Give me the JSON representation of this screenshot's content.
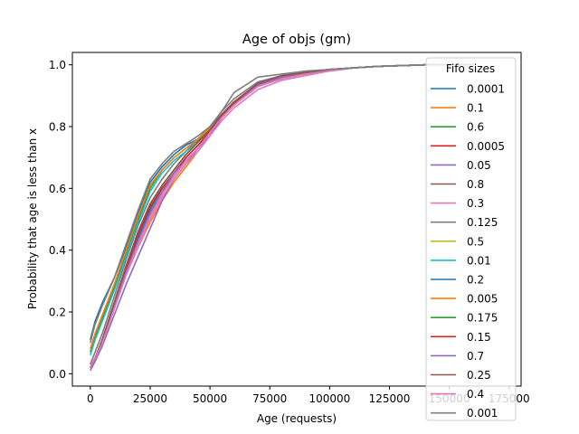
{
  "chart_data": {
    "type": "line",
    "title": "Age of objs (gm)",
    "xlabel": "Age (requests)",
    "ylabel": "Probability that age is less than x",
    "xlim": [
      -7500,
      180000
    ],
    "ylim": [
      -0.04,
      1.04
    ],
    "x_ticks": [
      0,
      25000,
      50000,
      75000,
      100000,
      125000,
      150000,
      175000
    ],
    "x_tick_labels": [
      "0",
      "25000",
      "50000",
      "75000",
      "100000",
      "125000",
      "150000",
      "175000"
    ],
    "y_ticks": [
      0.0,
      0.2,
      0.4,
      0.6,
      0.8,
      1.0
    ],
    "y_tick_labels": [
      "0.0",
      "0.2",
      "0.4",
      "0.6",
      "0.8",
      "1.0"
    ],
    "grid": false,
    "legend": {
      "title": "Fifo sizes",
      "placement": "upper-right"
    },
    "series": [
      {
        "name": "0.0001",
        "color": "#1f77b4",
        "x": [
          0,
          2000,
          5000,
          10000,
          15000,
          20000,
          25000,
          30000,
          35000,
          40000,
          45000,
          50000,
          55000,
          60000,
          70000,
          80000,
          90000,
          100000,
          110000,
          120000,
          140000,
          160000
        ],
        "y": [
          0.11,
          0.17,
          0.23,
          0.31,
          0.41,
          0.52,
          0.62,
          0.67,
          0.71,
          0.74,
          0.76,
          0.8,
          0.84,
          0.88,
          0.94,
          0.96,
          0.975,
          0.985,
          0.99,
          0.995,
          1.0,
          1.0
        ]
      },
      {
        "name": "0.1",
        "color": "#ff7f0e",
        "x": [
          0,
          2000,
          5000,
          10000,
          15000,
          20000,
          25000,
          30000,
          35000,
          40000,
          45000,
          50000,
          55000,
          60000,
          70000,
          80000,
          90000,
          100000,
          110000,
          120000,
          140000,
          160000
        ],
        "y": [
          0.02,
          0.05,
          0.11,
          0.22,
          0.32,
          0.41,
          0.49,
          0.56,
          0.62,
          0.67,
          0.72,
          0.77,
          0.83,
          0.87,
          0.93,
          0.955,
          0.97,
          0.98,
          0.99,
          0.995,
          1.0,
          1.0
        ]
      },
      {
        "name": "0.6",
        "color": "#2ca02c",
        "x": [
          0,
          2000,
          5000,
          10000,
          15000,
          20000,
          25000,
          30000,
          35000,
          40000,
          45000,
          50000,
          55000,
          60000,
          70000,
          80000,
          90000,
          100000,
          110000,
          120000,
          140000,
          160000
        ],
        "y": [
          0.07,
          0.12,
          0.18,
          0.28,
          0.39,
          0.5,
          0.6,
          0.66,
          0.7,
          0.73,
          0.755,
          0.79,
          0.83,
          0.87,
          0.935,
          0.96,
          0.975,
          0.985,
          0.99,
          0.995,
          1.0,
          1.0
        ]
      },
      {
        "name": "0.0005",
        "color": "#d62728",
        "x": [
          0,
          2000,
          5000,
          10000,
          15000,
          20000,
          25000,
          30000,
          35000,
          40000,
          45000,
          50000,
          55000,
          60000,
          70000,
          80000,
          90000,
          100000,
          110000,
          120000,
          140000,
          160000
        ],
        "y": [
          0.02,
          0.05,
          0.11,
          0.23,
          0.35,
          0.45,
          0.54,
          0.6,
          0.65,
          0.7,
          0.74,
          0.78,
          0.83,
          0.87,
          0.935,
          0.96,
          0.97,
          0.98,
          0.99,
          0.995,
          1.0,
          1.0
        ]
      },
      {
        "name": "0.05",
        "color": "#9467bd",
        "x": [
          0,
          2000,
          5000,
          10000,
          15000,
          20000,
          25000,
          30000,
          35000,
          40000,
          45000,
          50000,
          55000,
          60000,
          70000,
          80000,
          90000,
          100000,
          110000,
          120000,
          140000,
          160000
        ],
        "y": [
          0.01,
          0.04,
          0.09,
          0.19,
          0.29,
          0.38,
          0.47,
          0.56,
          0.63,
          0.68,
          0.73,
          0.77,
          0.83,
          0.87,
          0.93,
          0.955,
          0.97,
          0.98,
          0.99,
          0.995,
          1.0,
          1.0
        ]
      },
      {
        "name": "0.8",
        "color": "#8c564b",
        "x": [
          0,
          2000,
          5000,
          10000,
          15000,
          20000,
          25000,
          30000,
          35000,
          40000,
          45000,
          50000,
          55000,
          60000,
          70000,
          80000,
          90000,
          100000,
          110000,
          120000,
          140000,
          160000
        ],
        "y": [
          0.02,
          0.05,
          0.11,
          0.23,
          0.35,
          0.46,
          0.55,
          0.61,
          0.66,
          0.71,
          0.75,
          0.79,
          0.84,
          0.88,
          0.94,
          0.965,
          0.975,
          0.985,
          0.99,
          0.995,
          1.0,
          1.0
        ]
      },
      {
        "name": "0.3",
        "color": "#e377c2",
        "x": [
          0,
          2000,
          5000,
          10000,
          15000,
          20000,
          25000,
          30000,
          35000,
          40000,
          45000,
          50000,
          55000,
          60000,
          70000,
          80000,
          90000,
          100000,
          110000,
          120000,
          140000,
          160000
        ],
        "y": [
          0.02,
          0.05,
          0.1,
          0.21,
          0.32,
          0.41,
          0.5,
          0.57,
          0.63,
          0.68,
          0.72,
          0.77,
          0.82,
          0.86,
          0.92,
          0.95,
          0.965,
          0.98,
          0.99,
          0.995,
          1.0,
          1.0
        ]
      },
      {
        "name": "0.125",
        "color": "#7f7f7f",
        "x": [
          0,
          2000,
          5000,
          10000,
          15000,
          20000,
          25000,
          30000,
          35000,
          40000,
          45000,
          50000,
          55000,
          60000,
          70000,
          80000,
          90000,
          100000,
          110000,
          120000,
          140000,
          160000
        ],
        "y": [
          0.03,
          0.07,
          0.13,
          0.25,
          0.37,
          0.48,
          0.57,
          0.63,
          0.68,
          0.72,
          0.76,
          0.8,
          0.85,
          0.89,
          0.945,
          0.965,
          0.975,
          0.985,
          0.99,
          0.995,
          1.0,
          1.0
        ]
      },
      {
        "name": "0.5",
        "color": "#bcbd22",
        "x": [
          0,
          2000,
          5000,
          10000,
          15000,
          20000,
          25000,
          30000,
          35000,
          40000,
          45000,
          50000,
          55000,
          60000,
          70000,
          80000,
          90000,
          100000,
          110000,
          120000,
          140000,
          160000
        ],
        "y": [
          0.02,
          0.05,
          0.1,
          0.21,
          0.32,
          0.42,
          0.51,
          0.58,
          0.64,
          0.69,
          0.73,
          0.78,
          0.83,
          0.87,
          0.93,
          0.955,
          0.97,
          0.98,
          0.99,
          0.995,
          1.0,
          1.0
        ]
      },
      {
        "name": "0.01",
        "color": "#17becf",
        "x": [
          0,
          2000,
          5000,
          10000,
          15000,
          20000,
          25000,
          30000,
          35000,
          40000,
          45000,
          50000,
          55000,
          60000,
          70000,
          80000,
          90000,
          100000,
          110000,
          120000,
          140000,
          160000
        ],
        "y": [
          0.06,
          0.11,
          0.17,
          0.27,
          0.38,
          0.49,
          0.59,
          0.65,
          0.69,
          0.72,
          0.75,
          0.79,
          0.83,
          0.87,
          0.935,
          0.96,
          0.975,
          0.985,
          0.99,
          0.995,
          1.0,
          1.0
        ]
      },
      {
        "name": "0.2",
        "color": "#1f77b4",
        "x": [
          0,
          2000,
          5000,
          10000,
          15000,
          20000,
          25000,
          30000,
          35000,
          40000,
          45000,
          50000,
          55000,
          60000,
          70000,
          80000,
          90000,
          100000,
          110000,
          120000,
          140000,
          160000
        ],
        "y": [
          0.02,
          0.05,
          0.11,
          0.22,
          0.34,
          0.44,
          0.53,
          0.6,
          0.65,
          0.7,
          0.74,
          0.78,
          0.83,
          0.87,
          0.935,
          0.96,
          0.975,
          0.985,
          0.99,
          0.995,
          1.0,
          1.0
        ]
      },
      {
        "name": "0.005",
        "color": "#ff7f0e",
        "x": [
          0,
          2000,
          5000,
          10000,
          15000,
          20000,
          25000,
          30000,
          35000,
          40000,
          45000,
          50000,
          55000,
          60000,
          70000,
          80000,
          90000,
          100000,
          110000,
          120000,
          140000,
          160000
        ],
        "y": [
          0.08,
          0.13,
          0.19,
          0.29,
          0.4,
          0.51,
          0.61,
          0.66,
          0.7,
          0.73,
          0.76,
          0.795,
          0.835,
          0.875,
          0.935,
          0.96,
          0.975,
          0.985,
          0.99,
          0.995,
          1.0,
          1.0
        ]
      },
      {
        "name": "0.175",
        "color": "#2ca02c",
        "x": [
          0,
          2000,
          5000,
          10000,
          15000,
          20000,
          25000,
          30000,
          35000,
          40000,
          45000,
          50000,
          55000,
          60000,
          70000,
          80000,
          90000,
          100000,
          110000,
          120000,
          140000,
          160000
        ],
        "y": [
          0.02,
          0.05,
          0.11,
          0.22,
          0.33,
          0.43,
          0.52,
          0.59,
          0.64,
          0.69,
          0.73,
          0.78,
          0.83,
          0.87,
          0.935,
          0.96,
          0.975,
          0.985,
          0.99,
          0.995,
          1.0,
          1.0
        ]
      },
      {
        "name": "0.15",
        "color": "#d62728",
        "x": [
          0,
          2000,
          5000,
          10000,
          15000,
          20000,
          25000,
          30000,
          35000,
          40000,
          45000,
          50000,
          55000,
          60000,
          70000,
          80000,
          90000,
          100000,
          110000,
          120000,
          140000,
          160000
        ],
        "y": [
          0.02,
          0.05,
          0.11,
          0.22,
          0.34,
          0.45,
          0.54,
          0.6,
          0.65,
          0.7,
          0.74,
          0.785,
          0.835,
          0.875,
          0.94,
          0.96,
          0.975,
          0.985,
          0.99,
          0.995,
          1.0,
          1.0
        ]
      },
      {
        "name": "0.7",
        "color": "#9467bd",
        "x": [
          0,
          2000,
          5000,
          10000,
          15000,
          20000,
          25000,
          30000,
          35000,
          40000,
          45000,
          50000,
          55000,
          60000,
          70000,
          80000,
          90000,
          100000,
          110000,
          120000,
          140000,
          160000
        ],
        "y": [
          0.02,
          0.05,
          0.11,
          0.22,
          0.33,
          0.43,
          0.52,
          0.59,
          0.65,
          0.69,
          0.73,
          0.78,
          0.83,
          0.87,
          0.935,
          0.96,
          0.975,
          0.985,
          0.99,
          0.995,
          1.0,
          1.0
        ]
      },
      {
        "name": "0.25",
        "color": "#8c564b",
        "x": [
          0,
          2000,
          5000,
          10000,
          15000,
          20000,
          25000,
          30000,
          35000,
          40000,
          45000,
          50000,
          55000,
          60000,
          70000,
          80000,
          90000,
          100000,
          110000,
          120000,
          140000,
          160000
        ],
        "y": [
          0.02,
          0.05,
          0.11,
          0.23,
          0.35,
          0.46,
          0.55,
          0.61,
          0.66,
          0.71,
          0.75,
          0.79,
          0.84,
          0.88,
          0.94,
          0.965,
          0.975,
          0.985,
          0.99,
          0.995,
          1.0,
          1.0
        ]
      },
      {
        "name": "0.4",
        "color": "#e377c2",
        "x": [
          0,
          2000,
          5000,
          10000,
          15000,
          20000,
          25000,
          30000,
          35000,
          40000,
          45000,
          50000,
          55000,
          60000,
          70000,
          80000,
          90000,
          100000,
          110000,
          120000,
          140000,
          160000
        ],
        "y": [
          0.02,
          0.05,
          0.1,
          0.21,
          0.32,
          0.42,
          0.51,
          0.58,
          0.64,
          0.69,
          0.73,
          0.78,
          0.83,
          0.87,
          0.93,
          0.955,
          0.97,
          0.98,
          0.99,
          0.995,
          1.0,
          1.0
        ]
      },
      {
        "name": "0.001",
        "color": "#7f7f7f",
        "x": [
          0,
          2000,
          5000,
          10000,
          15000,
          20000,
          25000,
          30000,
          35000,
          40000,
          45000,
          50000,
          55000,
          60000,
          70000,
          80000,
          90000,
          100000,
          110000,
          120000,
          140000,
          160000
        ],
        "y": [
          0.1,
          0.16,
          0.22,
          0.31,
          0.42,
          0.53,
          0.63,
          0.68,
          0.72,
          0.745,
          0.77,
          0.8,
          0.85,
          0.91,
          0.96,
          0.97,
          0.98,
          0.985,
          0.99,
          0.995,
          1.0,
          1.0
        ]
      }
    ]
  }
}
